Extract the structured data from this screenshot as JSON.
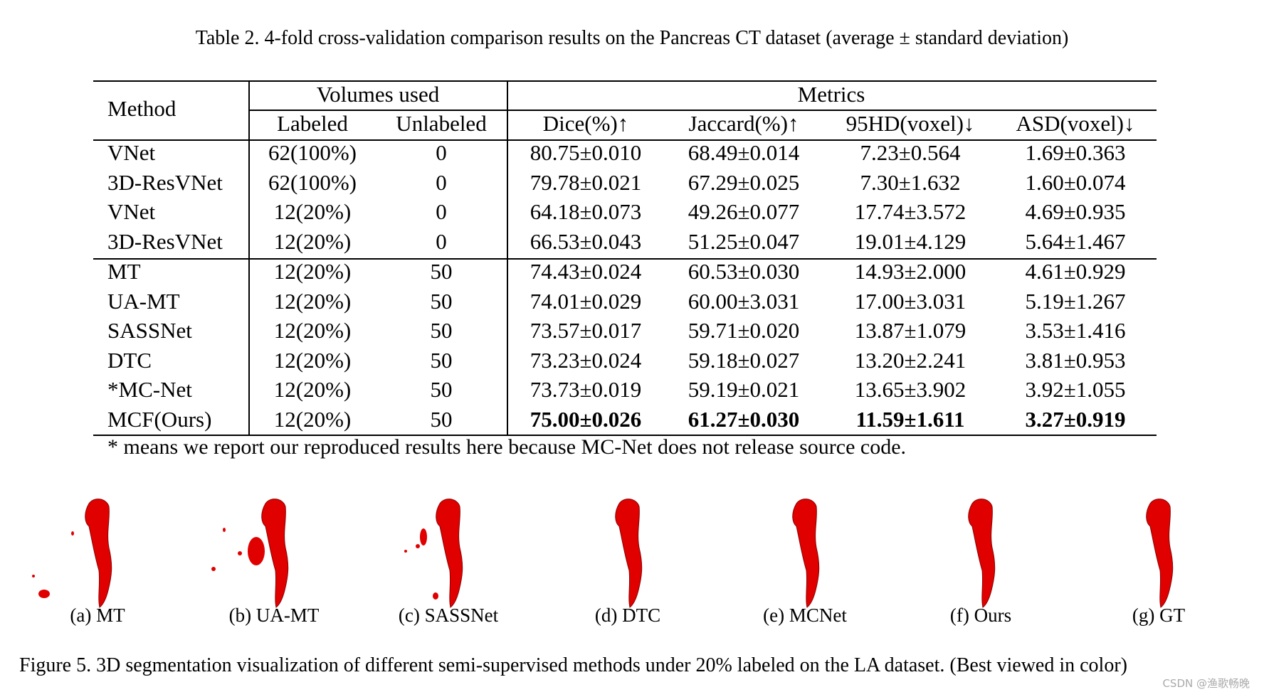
{
  "table": {
    "caption": "Table 2. 4-fold cross-validation comparison results on the Pancreas CT dataset (average ± standard deviation)",
    "header": {
      "method": "Method",
      "volumes_used": "Volumes used",
      "metrics": "Metrics",
      "columns": [
        "Labeled",
        "Unlabeled",
        "Dice(%)↑",
        "Jaccard(%)↑",
        "95HD(voxel)↓",
        "ASD(voxel)↓"
      ]
    },
    "rows": [
      [
        "VNet",
        "62(100%)",
        "0",
        "80.75±0.010",
        "68.49±0.014",
        "7.23±0.564",
        "1.69±0.363"
      ],
      [
        "3D-ResVNet",
        "62(100%)",
        "0",
        "79.78±0.021",
        "67.29±0.025",
        "7.30±1.632",
        "1.60±0.074"
      ],
      [
        "VNet",
        "12(20%)",
        "0",
        "64.18±0.073",
        "49.26±0.077",
        "17.74±3.572",
        "4.69±0.935"
      ],
      [
        "3D-ResVNet",
        "12(20%)",
        "0",
        "66.53±0.043",
        "51.25±0.047",
        "19.01±4.129",
        "5.64±1.467"
      ],
      [
        "MT",
        "12(20%)",
        "50",
        "74.43±0.024",
        "60.53±0.030",
        "14.93±2.000",
        "4.61±0.929"
      ],
      [
        "UA-MT",
        "12(20%)",
        "50",
        "74.01±0.029",
        "60.00±3.031",
        "17.00±3.031",
        "5.19±1.267"
      ],
      [
        "SASSNet",
        "12(20%)",
        "50",
        "73.57±0.017",
        "59.71±0.020",
        "13.87±1.079",
        "3.53±1.416"
      ],
      [
        "DTC",
        "12(20%)",
        "50",
        "73.23±0.024",
        "59.18±0.027",
        "13.20±2.241",
        "3.81±0.953"
      ],
      [
        "*MC-Net",
        "12(20%)",
        "50",
        "73.73±0.019",
        "59.19±0.021",
        "13.65±3.902",
        "3.92±1.055"
      ],
      [
        "MCF(Ours)",
        "12(20%)",
        "50",
        "75.00±0.026",
        "61.27±0.030",
        "11.59±1.611",
        "3.27±0.919"
      ]
    ],
    "bold_row": 9,
    "footnote": "* means we report our reproduced results here because MC-Net does not release source code."
  },
  "figure": {
    "panels": [
      "(a) MT",
      "(b) UA-MT",
      "(c) SASSNet",
      "(d) DTC",
      "(e) MCNet",
      "(f) Ours",
      "(g) GT"
    ],
    "caption": "Figure 5. 3D segmentation visualization of different semi-supervised methods under 20% labeled on the LA dataset. (Best viewed in color)",
    "segmentation_color": "#e00000"
  },
  "watermark": "CSDN @渔歌畅晚"
}
